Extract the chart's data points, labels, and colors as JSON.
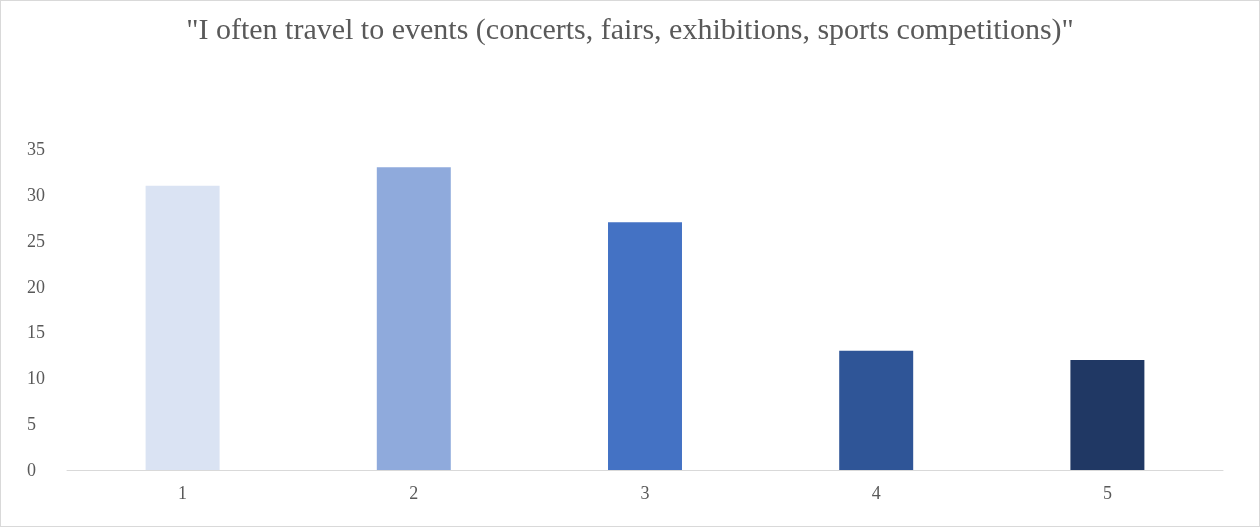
{
  "chart_data": {
    "type": "bar",
    "title": "\"I often travel to events (concerts, fairs, exhibitions, sports competitions)\"",
    "categories": [
      "1",
      "2",
      "3",
      "4",
      "5"
    ],
    "values": [
      31,
      33,
      27,
      13,
      12
    ],
    "colors": [
      "#dae3f3",
      "#8faadc",
      "#4472c4",
      "#2f5597",
      "#203864"
    ],
    "ylim": [
      0,
      35
    ],
    "yticks": [
      0,
      5,
      10,
      15,
      20,
      25,
      30,
      35
    ]
  }
}
